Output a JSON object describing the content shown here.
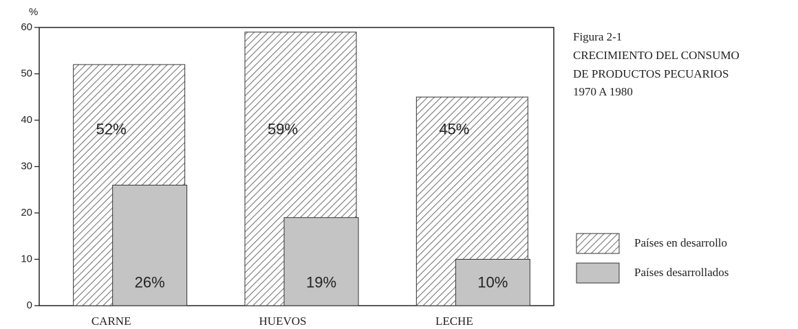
{
  "chart_data": {
    "type": "bar",
    "title": "Figura 2-1",
    "subtitle": [
      "CRECIMIENTO DEL CONSUMO",
      "DE PRODUCTOS PECUARIOS",
      "1970 A 1980"
    ],
    "y_label": "%",
    "categories": [
      "CARNE",
      "HUEVOS",
      "LECHE"
    ],
    "series": [
      {
        "name": "Países en desarrollo",
        "color": "#777777",
        "pattern": "hatch",
        "values": [
          52,
          59,
          45
        ],
        "value_labels": [
          "52%",
          "59%",
          "45%"
        ]
      },
      {
        "name": "Países desarrollados",
        "color": "#c4c4c4",
        "pattern": "solid",
        "values": [
          26,
          19,
          10
        ],
        "value_labels": [
          "26%",
          "19%",
          "10%"
        ]
      }
    ],
    "ylim": [
      0,
      60
    ],
    "yticks": [
      0,
      10,
      20,
      30,
      40,
      50,
      60
    ],
    "grid": false,
    "legend": "right"
  }
}
